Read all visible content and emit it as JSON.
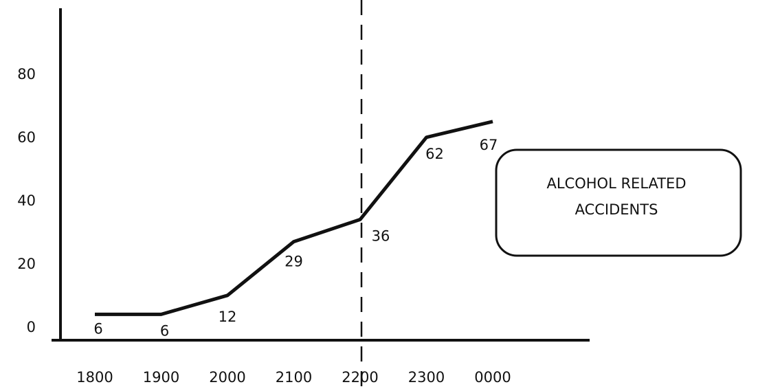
{
  "chart_data": {
    "type": "line",
    "categories": [
      "1800",
      "1900",
      "2000",
      "2100",
      "2200",
      "2300",
      "0000"
    ],
    "values": [
      6,
      6,
      12,
      29,
      36,
      62,
      67
    ],
    "color": "#111111",
    "ylim": [
      0,
      100
    ],
    "yticks": [
      0,
      20,
      40,
      60,
      80
    ],
    "grid": false,
    "vline": "2200",
    "annotation": [
      "ALCOHOL RELATED",
      "ACCIDENTS"
    ]
  }
}
